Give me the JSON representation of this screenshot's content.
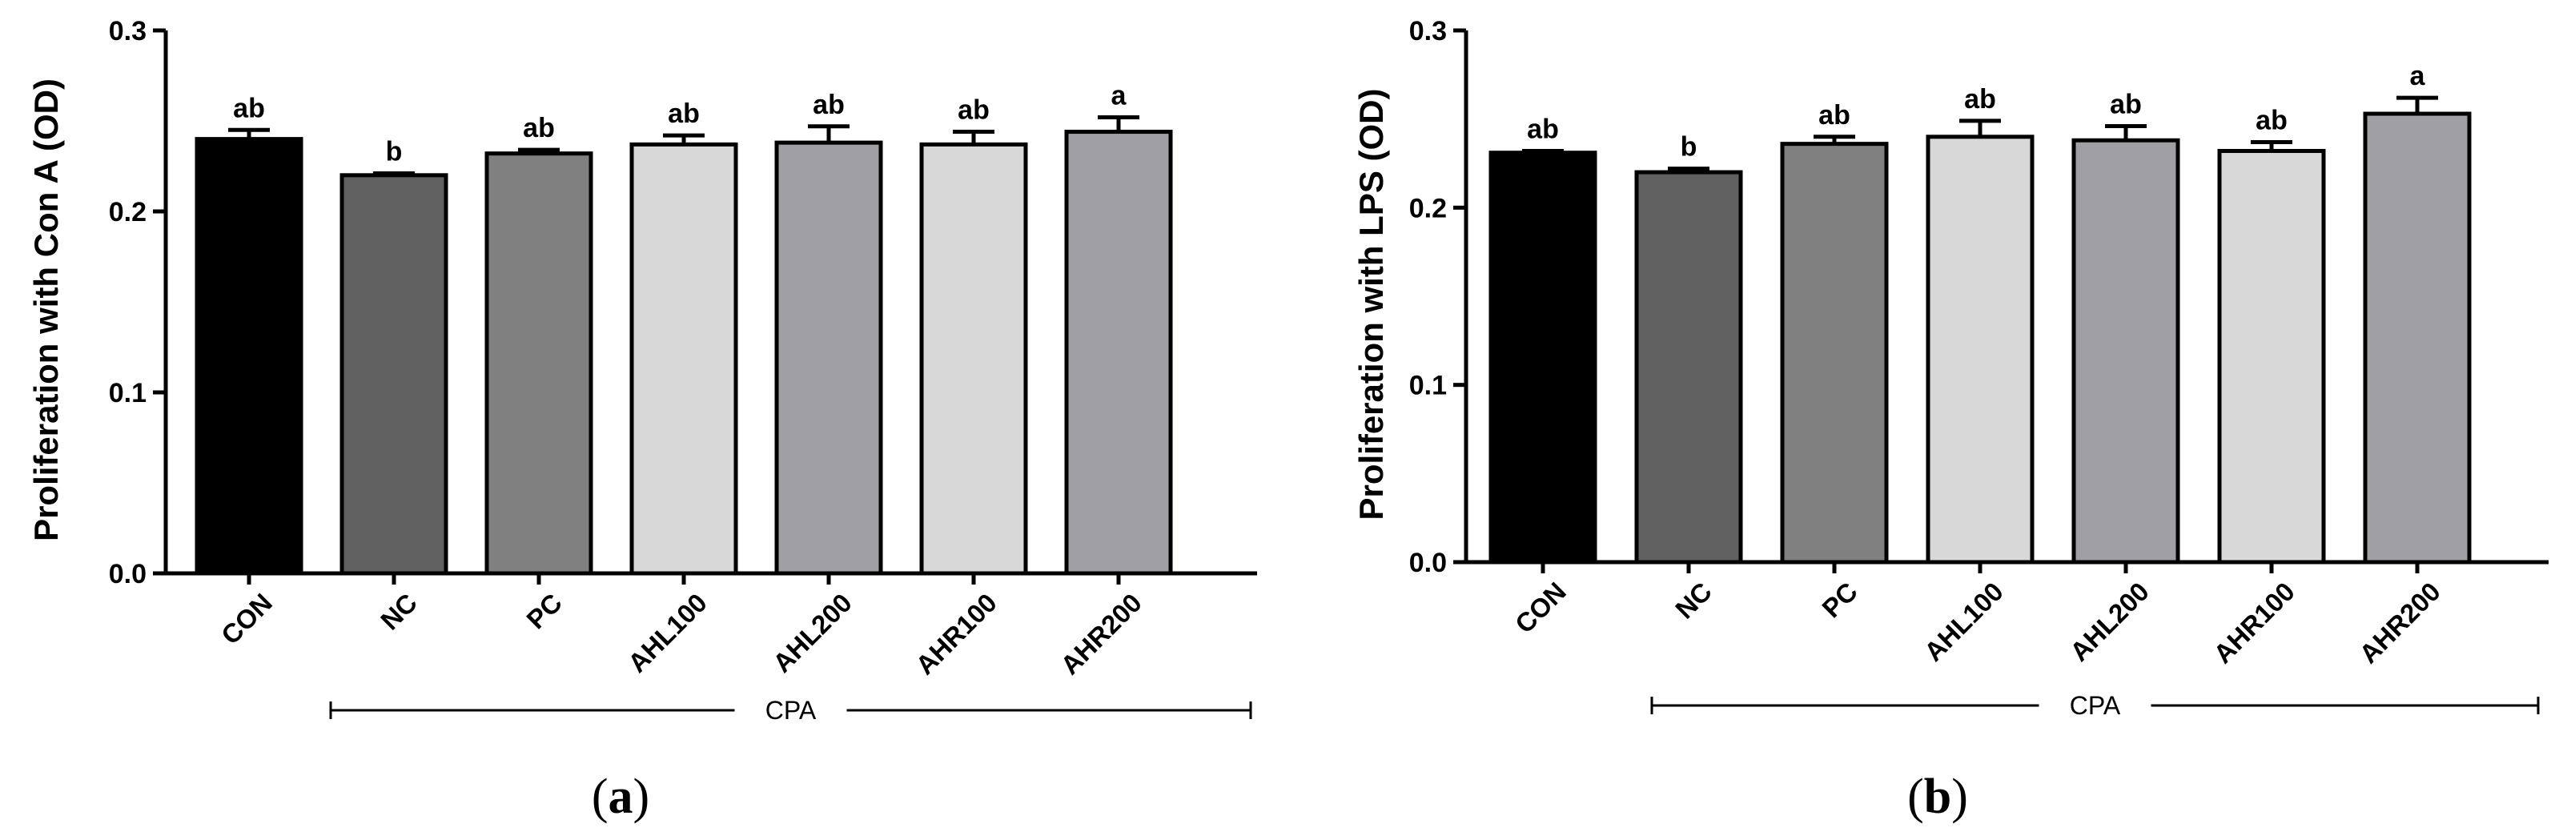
{
  "chart_data": [
    {
      "type": "bar",
      "panel_label": "(a)",
      "panel_letter": "a",
      "title": "",
      "xlabel": "",
      "ylabel": "Proliferation with Con A (OD)",
      "ylim": [
        0,
        0.3
      ],
      "yticks": [
        "0.0",
        "0.1",
        "0.2",
        "0.3"
      ],
      "categories": [
        "CON",
        "NC",
        "PC",
        "AHL100",
        "AHL200",
        "AHR100",
        "AHR200"
      ],
      "values": [
        0.24,
        0.22,
        0.232,
        0.237,
        0.238,
        0.237,
        0.244
      ],
      "errors": [
        0.005,
        0.001,
        0.002,
        0.005,
        0.009,
        0.007,
        0.008
      ],
      "significance": [
        "ab",
        "b",
        "ab",
        "ab",
        "ab",
        "ab",
        "a"
      ],
      "colors": [
        "#000000",
        "#606060",
        "#808080",
        "#d8d8d8",
        "#a0a0a4",
        "#d8d8d8",
        "#a0a0a4"
      ],
      "group_label": "CPA"
    },
    {
      "type": "bar",
      "panel_label": "(b)",
      "panel_letter": "b",
      "title": "",
      "xlabel": "",
      "ylabel": "Proliferation with LPS (OD)",
      "ylim": [
        0,
        0.3
      ],
      "yticks": [
        "0.0",
        "0.1",
        "0.2",
        "0.3"
      ],
      "categories": [
        "CON",
        "NC",
        "PC",
        "AHL100",
        "AHL200",
        "AHR100",
        "AHR200"
      ],
      "values": [
        0.231,
        0.22,
        0.236,
        0.24,
        0.238,
        0.232,
        0.253
      ],
      "errors": [
        0.001,
        0.002,
        0.004,
        0.009,
        0.008,
        0.005,
        0.009
      ],
      "significance": [
        "ab",
        "b",
        "ab",
        "ab",
        "ab",
        "ab",
        "a"
      ],
      "colors": [
        "#000000",
        "#606060",
        "#808080",
        "#d8d8d8",
        "#a0a0a4",
        "#d8d8d8",
        "#a0a0a4"
      ],
      "group_label": "CPA"
    }
  ]
}
